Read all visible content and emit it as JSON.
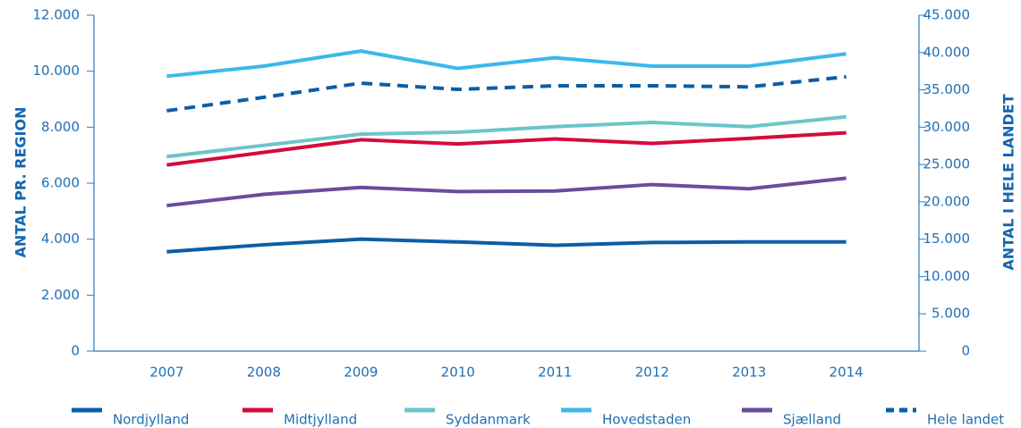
{
  "chart_data": {
    "type": "line",
    "categories": [
      "2007",
      "2008",
      "2009",
      "2010",
      "2011",
      "2012",
      "2013",
      "2014"
    ],
    "ylabel": "ANTAL PR. REGION",
    "y2label": "ANTAL I HELE LANDET",
    "ylim": [
      0,
      12000
    ],
    "yticks": [
      0,
      {
        "value": 2000,
        "label": "2.000"
      },
      {
        "value": 4000,
        "label": "4.000"
      },
      {
        "value": 6000,
        "label": "6.000"
      },
      {
        "value": 8000,
        "label": "8.000"
      },
      {
        "value": 10000,
        "label": "10.000"
      },
      {
        "value": 12000,
        "label": "12.000"
      }
    ],
    "y2lim": [
      0,
      45000
    ],
    "y2ticks": [
      0,
      {
        "value": 5000,
        "label": "5.000"
      },
      {
        "value": 10000,
        "label": "10.000"
      },
      {
        "value": 15000,
        "label": "15.000"
      },
      {
        "value": 20000,
        "label": "20.000"
      },
      {
        "value": 25000,
        "label": "25.000"
      },
      {
        "value": 30000,
        "label": "30.000"
      },
      {
        "value": 35000,
        "label": "35.000"
      },
      {
        "value": 40000,
        "label": "40.000"
      },
      {
        "value": 45000,
        "label": "45.000"
      }
    ],
    "legend": "bottom",
    "series": [
      {
        "name": "Nordjylland",
        "color": "#0b5ea8",
        "values": [
          3550,
          3800,
          4000,
          3900,
          3780,
          3880,
          3900,
          3900
        ]
      },
      {
        "name": "Midtjylland",
        "color": "#d50b3c",
        "values": [
          6650,
          7100,
          7550,
          7400,
          7580,
          7420,
          7600,
          7800
        ]
      },
      {
        "name": "Syddanmark",
        "color": "#6cc5c9",
        "values": [
          6950,
          7350,
          7750,
          7820,
          8020,
          8170,
          8020,
          8370
        ]
      },
      {
        "name": "Hovedstaden",
        "color": "#3db8ea",
        "values": [
          9820,
          10180,
          10720,
          10100,
          10480,
          10180,
          10180,
          10620
        ]
      },
      {
        "name": "Sjælland",
        "color": "#6b4c9a",
        "values": [
          5200,
          5600,
          5850,
          5700,
          5720,
          5950,
          5800,
          6180
        ]
      },
      {
        "name": "Hele landet",
        "color": "#0b5ea8",
        "line_style": "dashed",
        "axis": "y2",
        "values": [
          32200,
          34000,
          35900,
          35060,
          35550,
          35550,
          35400,
          36750
        ]
      }
    ]
  }
}
